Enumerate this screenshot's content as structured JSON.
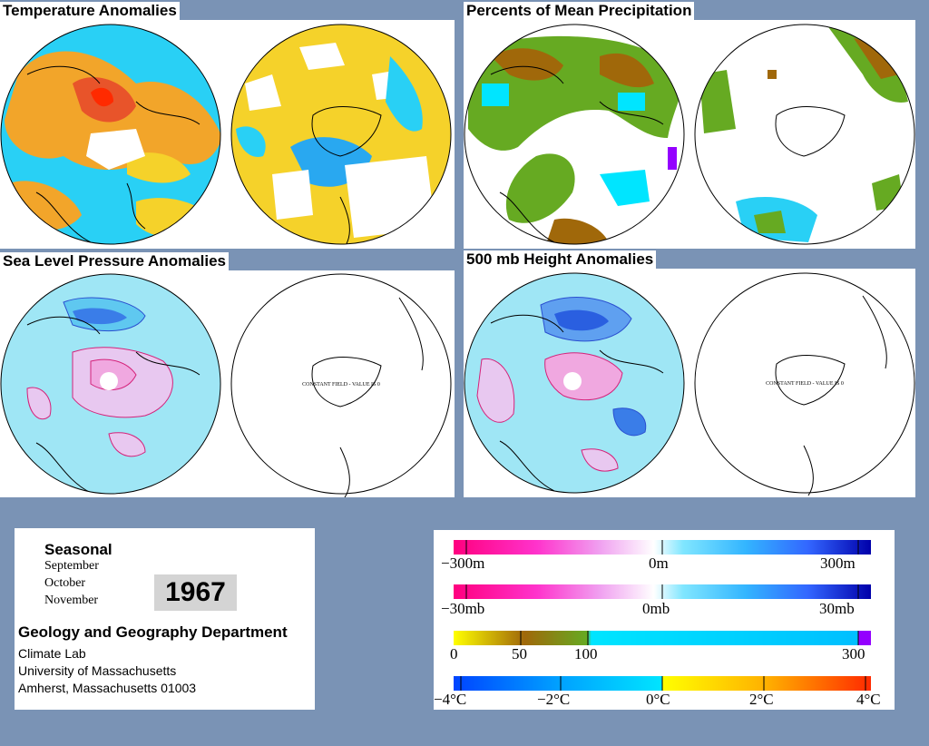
{
  "panels": {
    "temperature": {
      "title": "Temperature Anomalies"
    },
    "precipitation": {
      "title": "Percents of Mean Precipitation"
    },
    "slp": {
      "title": "Sea Level Pressure Anomalies",
      "constant_field_note": "CONSTANT FIELD - VALUE IS 0"
    },
    "height500": {
      "title": "500 mb Height Anomalies",
      "constant_field_note": "CONSTANT FIELD - VALUE IS 0"
    }
  },
  "info": {
    "season": "Seasonal",
    "months": [
      "September",
      "October",
      "November"
    ],
    "year": "1967",
    "department": "Geology and Geography Department",
    "lines": [
      "Climate Lab",
      "University of Massachusetts",
      "Amherst, Massachusetts 01003"
    ]
  },
  "legend": {
    "height": {
      "left": "−300m",
      "mid": "0m",
      "right": "300m"
    },
    "pressure": {
      "left": "−30mb",
      "mid": "0mb",
      "right": "30mb"
    },
    "precip": {
      "t0": "0",
      "t50": "50",
      "t100": "100",
      "t300": "300"
    },
    "temp": {
      "tm4": "−4°C",
      "tm2": "−2°C",
      "t0": "0°C",
      "t2": "2°C",
      "t4": "4°C"
    }
  },
  "colors": {
    "background": "#7a93b5",
    "anomaly_scale": [
      "#ff007f",
      "#ff33cc",
      "#ff66ff",
      "#e6b3f0",
      "#ffffff",
      "#80e6ff",
      "#33b5ff",
      "#3366ff",
      "#0000cc"
    ],
    "precip_scale": [
      "#ffff00",
      "#a0680a",
      "#66aa22",
      "#00e5ff",
      "#00bfff",
      "#9400ff"
    ],
    "temp_scale": [
      "#0044ff",
      "#00a0ff",
      "#00e5ff",
      "#ffff00",
      "#ffb000",
      "#ff3300"
    ]
  }
}
